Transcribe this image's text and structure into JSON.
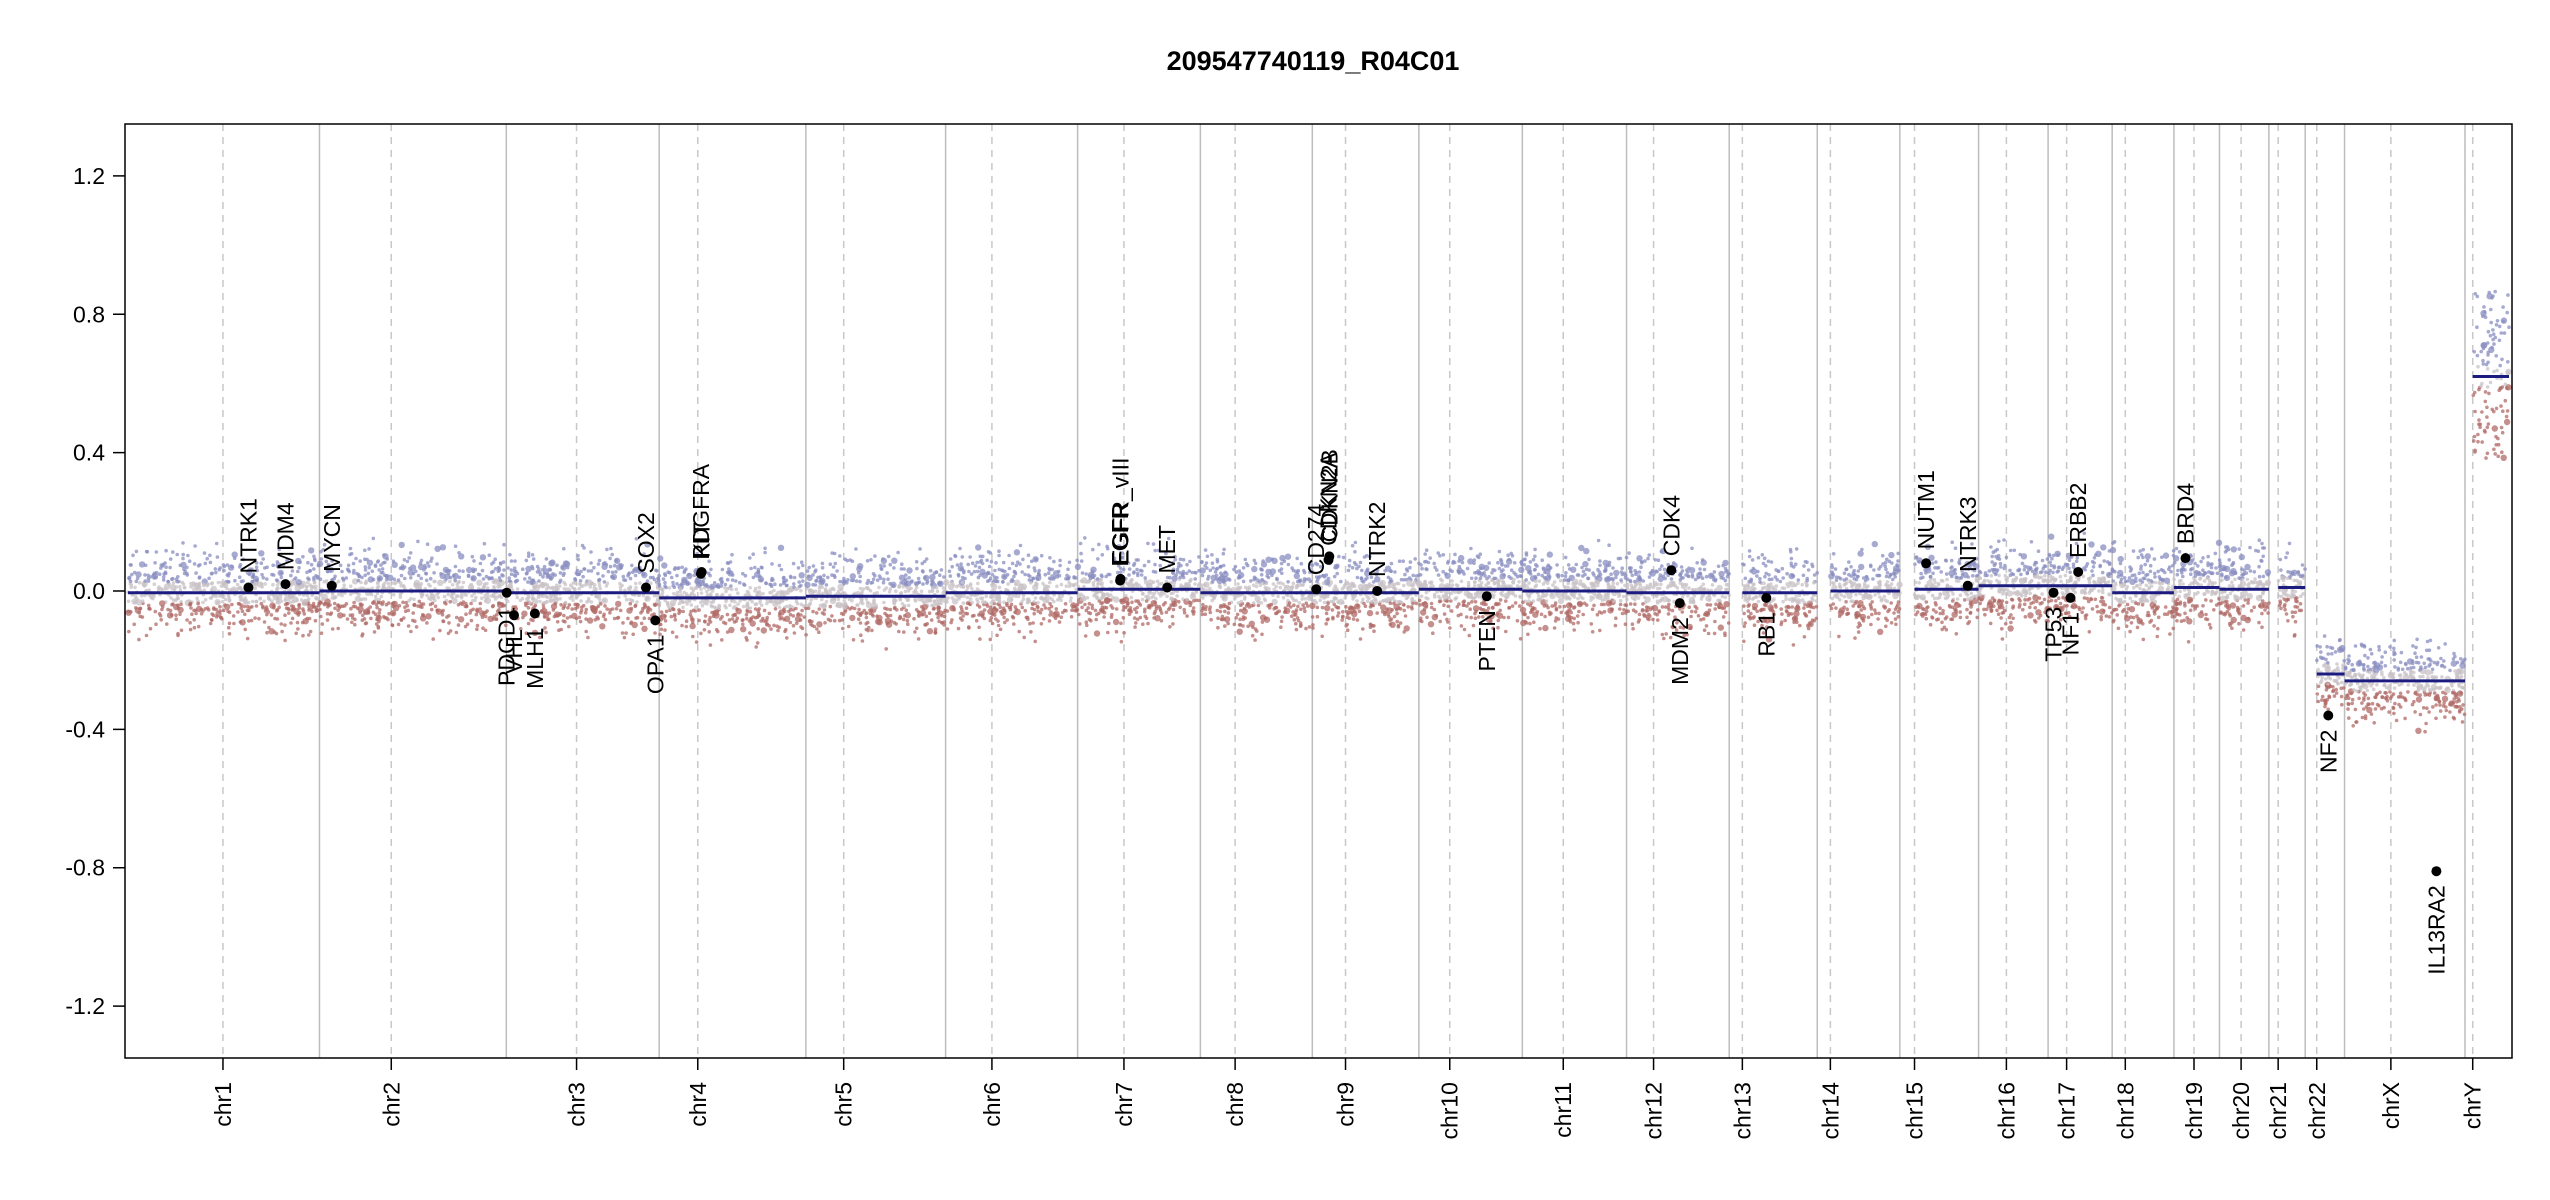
{
  "chart_data": {
    "type": "scatter",
    "title": "209547740119_R04C01",
    "xlabel": "",
    "ylabel": "",
    "ylim": [
      -1.35,
      1.35
    ],
    "yticks": [
      "1.2",
      "0.8",
      "0.4",
      "0.0",
      "-0.4",
      "-0.8",
      "-1.2"
    ],
    "ytick_values": [
      1.2,
      0.8,
      0.4,
      0.0,
      -0.4,
      -0.8,
      -1.2
    ],
    "grid": false,
    "colors": {
      "points_high": "#8a8ec0",
      "points_mid": "#c8c2c6",
      "points_low": "#b06a66",
      "segment": "#1c1c80",
      "gene": "#000000"
    },
    "chromosomes": [
      {
        "name": "chr1",
        "length": 248,
        "centromere": 123,
        "segments": [
          {
            "start": 0,
            "end": 248,
            "value": -0.005
          }
        ]
      },
      {
        "name": "chr2",
        "length": 242,
        "centromere": 93,
        "segments": [
          {
            "start": 0,
            "end": 242,
            "value": 0.0
          }
        ]
      },
      {
        "name": "chr3",
        "length": 198,
        "centromere": 91,
        "segments": [
          {
            "start": 0,
            "end": 198,
            "value": -0.005
          }
        ]
      },
      {
        "name": "chr4",
        "length": 190,
        "centromere": 50,
        "segments": [
          {
            "start": 0,
            "end": 190,
            "value": -0.02
          }
        ]
      },
      {
        "name": "chr5",
        "length": 181,
        "centromere": 49,
        "segments": [
          {
            "start": 0,
            "end": 181,
            "value": -0.015
          }
        ]
      },
      {
        "name": "chr6",
        "length": 171,
        "centromere": 60,
        "segments": [
          {
            "start": 0,
            "end": 171,
            "value": -0.005
          }
        ]
      },
      {
        "name": "chr7",
        "length": 159,
        "centromere": 60,
        "segments": [
          {
            "start": 0,
            "end": 159,
            "value": 0.005
          }
        ]
      },
      {
        "name": "chr8",
        "length": 145,
        "centromere": 45,
        "segments": [
          {
            "start": 0,
            "end": 145,
            "value": -0.005
          }
        ]
      },
      {
        "name": "chr9",
        "length": 138,
        "centromere": 43,
        "segments": [
          {
            "start": 0,
            "end": 138,
            "value": -0.005
          }
        ]
      },
      {
        "name": "chr10",
        "length": 134,
        "centromere": 40,
        "segments": [
          {
            "start": 0,
            "end": 134,
            "value": 0.005
          }
        ]
      },
      {
        "name": "chr11",
        "length": 135,
        "centromere": 53,
        "segments": [
          {
            "start": 0,
            "end": 135,
            "value": 0.0
          }
        ]
      },
      {
        "name": "chr12",
        "length": 133,
        "centromere": 35,
        "segments": [
          {
            "start": 0,
            "end": 133,
            "value": -0.005
          }
        ]
      },
      {
        "name": "chr13",
        "length": 114,
        "centromere": 17,
        "segments": [
          {
            "start": 17,
            "end": 114,
            "value": -0.005
          }
        ]
      },
      {
        "name": "chr14",
        "length": 107,
        "centromere": 17,
        "segments": [
          {
            "start": 17,
            "end": 107,
            "value": 0.0
          }
        ]
      },
      {
        "name": "chr15",
        "length": 102,
        "centromere": 19,
        "segments": [
          {
            "start": 19,
            "end": 102,
            "value": 0.005
          }
        ]
      },
      {
        "name": "chr16",
        "length": 90,
        "centromere": 36,
        "segments": [
          {
            "start": 0,
            "end": 90,
            "value": 0.015
          }
        ]
      },
      {
        "name": "chr17",
        "length": 83,
        "centromere": 24,
        "segments": [
          {
            "start": 0,
            "end": 83,
            "value": 0.015
          }
        ]
      },
      {
        "name": "chr18",
        "length": 80,
        "centromere": 17,
        "segments": [
          {
            "start": 0,
            "end": 80,
            "value": -0.005
          }
        ]
      },
      {
        "name": "chr19",
        "length": 59,
        "centromere": 26,
        "segments": [
          {
            "start": 0,
            "end": 59,
            "value": 0.01
          }
        ]
      },
      {
        "name": "chr20",
        "length": 64,
        "centromere": 28,
        "segments": [
          {
            "start": 0,
            "end": 64,
            "value": 0.005
          }
        ]
      },
      {
        "name": "chr21",
        "length": 47,
        "centromere": 12,
        "segments": [
          {
            "start": 12,
            "end": 47,
            "value": 0.01
          }
        ]
      },
      {
        "name": "chr22",
        "length": 51,
        "centromere": 15,
        "segments": [
          {
            "start": 15,
            "end": 51,
            "value": -0.24
          }
        ]
      },
      {
        "name": "chrX",
        "length": 156,
        "centromere": 60,
        "segments": [
          {
            "start": 0,
            "end": 156,
            "value": -0.26
          }
        ]
      },
      {
        "name": "chrY",
        "length": 57,
        "centromere": 10,
        "segments": [
          {
            "start": 10,
            "end": 57,
            "value": 0.62
          }
        ]
      }
    ],
    "genes": [
      {
        "name": "NTRK1",
        "chr": "chr1",
        "pos": 156,
        "value": 0.01,
        "label_side": "above"
      },
      {
        "name": "MDM4",
        "chr": "chr1",
        "pos": 204,
        "value": 0.02,
        "label_side": "above"
      },
      {
        "name": "MYCN",
        "chr": "chr2",
        "pos": 16,
        "value": 0.015,
        "label_side": "above"
      },
      {
        "name": "PDGD1",
        "chr": "chr3",
        "pos": 0.5,
        "value": -0.005,
        "label_side": "below"
      },
      {
        "name": "VHL",
        "chr": "chr3",
        "pos": 10,
        "value": -0.07,
        "label_side": "below"
      },
      {
        "name": "MLH1",
        "chr": "chr3",
        "pos": 37,
        "value": -0.065,
        "label_side": "below"
      },
      {
        "name": "SOX2",
        "chr": "chr3",
        "pos": 181,
        "value": 0.01,
        "label_side": "above"
      },
      {
        "name": "OPA1",
        "chr": "chr3",
        "pos": 193,
        "value": -0.085,
        "label_side": "below"
      },
      {
        "name": "PDGFRA",
        "chr": "chr4",
        "pos": 54,
        "value": 0.05,
        "label_side": "above"
      },
      {
        "name": "KIT",
        "chr": "chr4",
        "pos": 55,
        "value": 0.055,
        "label_side": "above"
      },
      {
        "name": "EGFR",
        "chr": "chr7",
        "pos": 55,
        "value": 0.03,
        "label_side": "above"
      },
      {
        "name": "EGFR_vIII",
        "chr": "chr7",
        "pos": 55.5,
        "value": 0.035,
        "label_side": "above"
      },
      {
        "name": "MET",
        "chr": "chr7",
        "pos": 116,
        "value": 0.01,
        "label_side": "above"
      },
      {
        "name": "CD274",
        "chr": "chr9",
        "pos": 5,
        "value": 0.005,
        "label_side": "above"
      },
      {
        "name": "CDKN2A",
        "chr": "chr9",
        "pos": 21,
        "value": 0.09,
        "label_side": "above"
      },
      {
        "name": "CDKN2B",
        "chr": "chr9",
        "pos": 22,
        "value": 0.1,
        "label_side": "above"
      },
      {
        "name": "NTRK2",
        "chr": "chr9",
        "pos": 84,
        "value": 0.0,
        "label_side": "above"
      },
      {
        "name": "PTEN",
        "chr": "chr10",
        "pos": 88,
        "value": -0.015,
        "label_side": "below"
      },
      {
        "name": "CDK4",
        "chr": "chr12",
        "pos": 58,
        "value": 0.06,
        "label_side": "above"
      },
      {
        "name": "MDM2",
        "chr": "chr12",
        "pos": 69,
        "value": -0.035,
        "label_side": "below"
      },
      {
        "name": "RB1",
        "chr": "chr13",
        "pos": 48,
        "value": -0.02,
        "label_side": "below"
      },
      {
        "name": "NUTM1",
        "chr": "chr15",
        "pos": 34,
        "value": 0.08,
        "label_side": "above"
      },
      {
        "name": "NTRK3",
        "chr": "chr15",
        "pos": 88,
        "value": 0.015,
        "label_side": "above"
      },
      {
        "name": "TP53",
        "chr": "chr17",
        "pos": 7,
        "value": -0.005,
        "label_side": "below"
      },
      {
        "name": "NF1",
        "chr": "chr17",
        "pos": 29,
        "value": -0.02,
        "label_side": "below"
      },
      {
        "name": "ERBB2",
        "chr": "chr17",
        "pos": 39,
        "value": 0.055,
        "label_side": "above"
      },
      {
        "name": "BRD4",
        "chr": "chr19",
        "pos": 15,
        "value": 0.095,
        "label_side": "above"
      },
      {
        "name": "NF2",
        "chr": "chr22",
        "pos": 30,
        "value": -0.36,
        "label_side": "below"
      },
      {
        "name": "IL13RA2",
        "chr": "chrX",
        "pos": 119,
        "value": -0.81,
        "label_side": "below"
      }
    ]
  }
}
